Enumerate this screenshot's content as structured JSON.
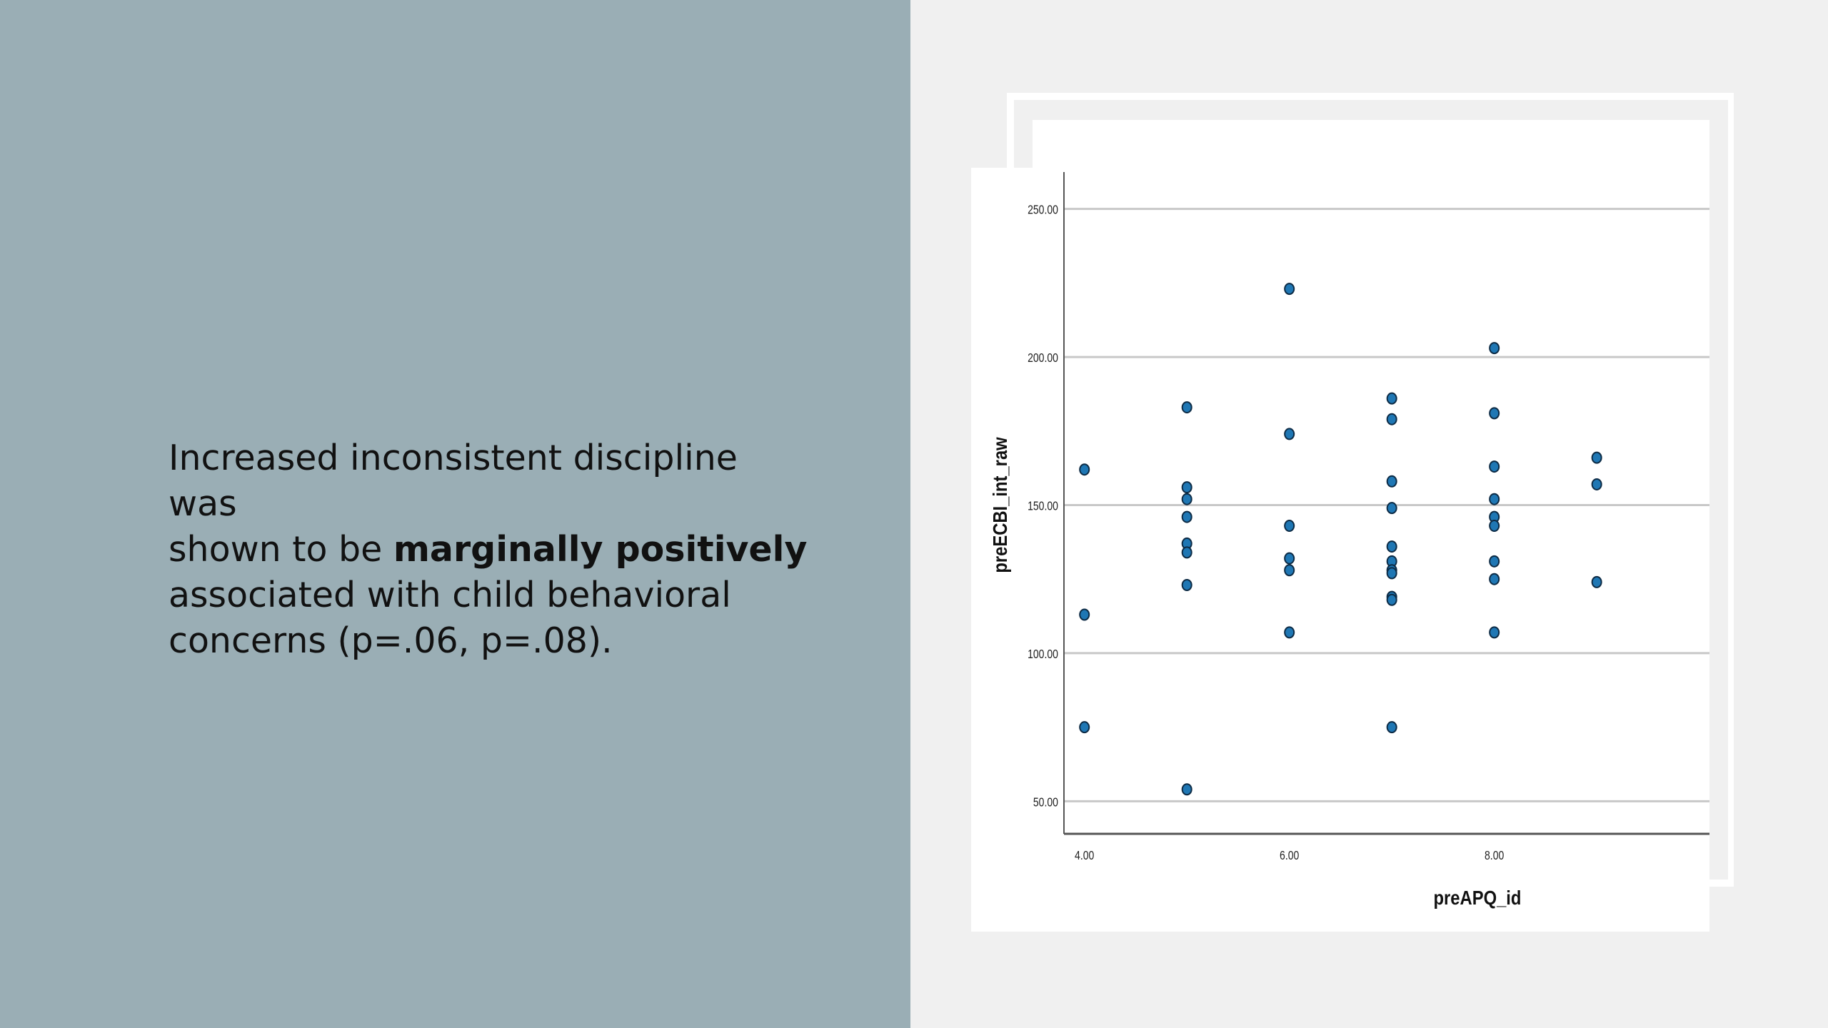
{
  "colors": {
    "left_panel_bg": "#9aaeb5",
    "point_fill": "#1f77b4",
    "point_stroke": "#0d2b45",
    "grid": "#c8c8c8"
  },
  "text": {
    "line1": "Increased inconsistent discipline was",
    "line2_prefix": "shown to be ",
    "line2_bold": "marginally positively",
    "line3": "associated with child behavioral",
    "line4": "concerns (p=.06, p=.08)."
  },
  "chart_data": {
    "type": "scatter",
    "xlabel": "preAPQ_id",
    "ylabel": "preECBI_int_raw",
    "xlim": [
      3.8,
      10.1
    ],
    "ylim": [
      39,
      261
    ],
    "x_ticks": [
      4,
      6,
      8
    ],
    "x_tick_labels": [
      "4.00",
      "6.00",
      "8.00"
    ],
    "y_ticks": [
      50,
      100,
      150,
      200,
      250
    ],
    "y_tick_labels": [
      "50.00",
      "100.00",
      "150.00",
      "200.00",
      "250.00"
    ],
    "grid": "horizontal",
    "points": [
      {
        "x": 4,
        "y": 162
      },
      {
        "x": 4,
        "y": 113
      },
      {
        "x": 4,
        "y": 75
      },
      {
        "x": 5,
        "y": 183
      },
      {
        "x": 5,
        "y": 156
      },
      {
        "x": 5,
        "y": 152
      },
      {
        "x": 5,
        "y": 146
      },
      {
        "x": 5,
        "y": 137
      },
      {
        "x": 5,
        "y": 134
      },
      {
        "x": 5,
        "y": 123
      },
      {
        "x": 5,
        "y": 54
      },
      {
        "x": 6,
        "y": 223
      },
      {
        "x": 6,
        "y": 174
      },
      {
        "x": 6,
        "y": 143
      },
      {
        "x": 6,
        "y": 132
      },
      {
        "x": 6,
        "y": 128
      },
      {
        "x": 6,
        "y": 107
      },
      {
        "x": 7,
        "y": 186
      },
      {
        "x": 7,
        "y": 179
      },
      {
        "x": 7,
        "y": 158
      },
      {
        "x": 7,
        "y": 149
      },
      {
        "x": 7,
        "y": 136
      },
      {
        "x": 7,
        "y": 131
      },
      {
        "x": 7,
        "y": 128
      },
      {
        "x": 7,
        "y": 127
      },
      {
        "x": 7,
        "y": 119
      },
      {
        "x": 7,
        "y": 118
      },
      {
        "x": 7,
        "y": 75
      },
      {
        "x": 8,
        "y": 203
      },
      {
        "x": 8,
        "y": 181
      },
      {
        "x": 8,
        "y": 163
      },
      {
        "x": 8,
        "y": 152
      },
      {
        "x": 8,
        "y": 146
      },
      {
        "x": 8,
        "y": 143
      },
      {
        "x": 8,
        "y": 131
      },
      {
        "x": 8,
        "y": 125
      },
      {
        "x": 8,
        "y": 107
      },
      {
        "x": 9,
        "y": 166
      },
      {
        "x": 9,
        "y": 157
      },
      {
        "x": 9,
        "y": 124
      }
    ]
  }
}
